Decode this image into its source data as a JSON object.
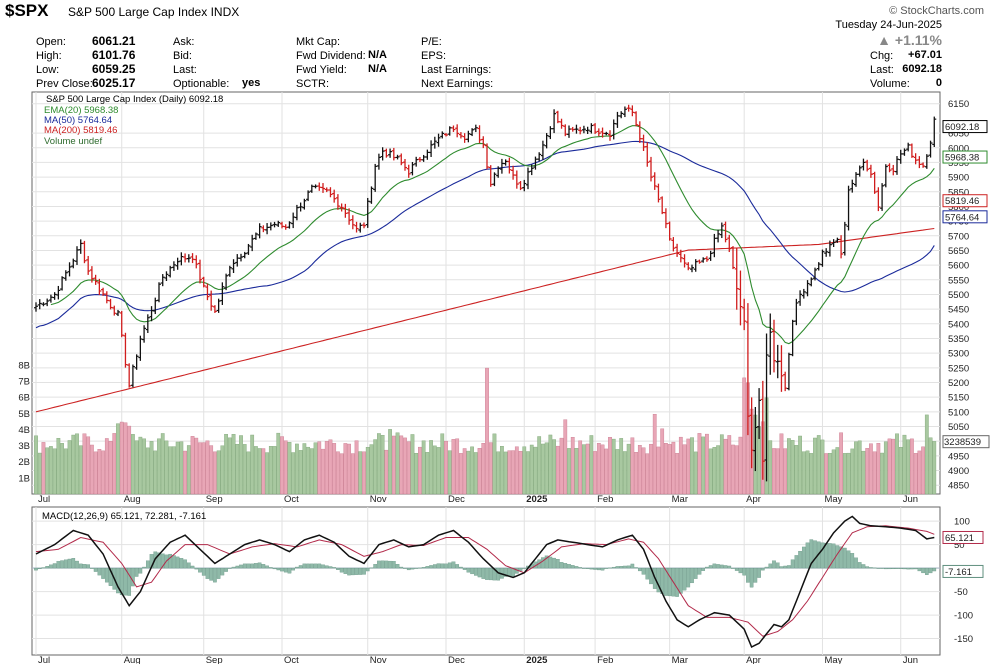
{
  "header": {
    "symbol": "$SPX",
    "name": "S&P 500 Large Cap Index",
    "exchange": "INDX",
    "brand": "© StockCharts.com",
    "date": "Tuesday  24-Jun-2025",
    "change_pct": "▲ +1.11%",
    "fields": {
      "open": {
        "label": "Open:",
        "value": "6061.21"
      },
      "high": {
        "label": "High:",
        "value": "6101.76"
      },
      "low": {
        "label": "Low:",
        "value": "6059.25"
      },
      "prev_close": {
        "label": "Prev Close:",
        "value": "6025.17"
      },
      "ask": {
        "label": "Ask:",
        "value": ""
      },
      "bid": {
        "label": "Bid:",
        "value": ""
      },
      "last": {
        "label": "Last:",
        "value": ""
      },
      "optionable": {
        "label": "Optionable:",
        "value": "yes"
      },
      "mkt_cap": {
        "label": "Mkt Cap:",
        "value": ""
      },
      "fwd_dividend": {
        "label": "Fwd Dividend:",
        "value": "N/A"
      },
      "fwd_yield": {
        "label": "Fwd Yield:",
        "value": "N/A"
      },
      "sctr": {
        "label": "SCTR:",
        "value": ""
      },
      "pe": {
        "label": "P/E:",
        "value": ""
      },
      "eps": {
        "label": "EPS:",
        "value": ""
      },
      "last_earnings": {
        "label": "Last Earnings:",
        "value": ""
      },
      "next_earnings": {
        "label": "Next Earnings:",
        "value": ""
      },
      "chg": {
        "label": "Chg:",
        "value": "+67.01"
      },
      "last_price": {
        "label": "Last:",
        "value": "6092.18"
      },
      "volume": {
        "label": "Volume:",
        "value": "0"
      }
    }
  },
  "chart_data": [
    {
      "type": "ohlc-bars",
      "title": "S&P 500 Large Cap Index (Daily) 6092.18",
      "legend": [
        {
          "name": "EMA(20) 5968.38",
          "color": "#2e8b2e"
        },
        {
          "name": "MA(50) 5764.64",
          "color": "#1a2a9a"
        },
        {
          "name": "MA(200) 5819.46",
          "color": "#cc2222"
        },
        {
          "name": "Volume undef",
          "color": "#4a8a4a"
        }
      ],
      "months": [
        "Jul",
        "Aug",
        "Sep",
        "Oct",
        "Nov",
        "Dec",
        "2025",
        "Feb",
        "Mar",
        "Apr",
        "May",
        "Jun"
      ],
      "month_idx": [
        0,
        23,
        45,
        66,
        89,
        110,
        131,
        150,
        170,
        190,
        211,
        232
      ],
      "price_ticks": [
        4850,
        4900,
        4950,
        5000,
        5050,
        5100,
        5150,
        5200,
        5250,
        5300,
        5350,
        5400,
        5450,
        5500,
        5550,
        5600,
        5650,
        5700,
        5750,
        5800,
        5850,
        5900,
        5950,
        6000,
        6050,
        6150
      ],
      "ylim": [
        4820,
        6190
      ],
      "volume_ticks": [
        "1B",
        "2B",
        "3B",
        "4B",
        "5B",
        "6B",
        "7B",
        "8B"
      ],
      "volume_max_label": "3238539",
      "last_labels": {
        "price": "6092.18",
        "ema20": "5968.38",
        "ma200": "5819.46",
        "ma50": "5764.64"
      },
      "anchors_close": [
        [
          0,
          5460
        ],
        [
          5,
          5500
        ],
        [
          10,
          5620
        ],
        [
          12,
          5670
        ],
        [
          14,
          5580
        ],
        [
          17,
          5520
        ],
        [
          19,
          5480
        ],
        [
          22,
          5430
        ],
        [
          25,
          5190
        ],
        [
          28,
          5350
        ],
        [
          31,
          5450
        ],
        [
          34,
          5560
        ],
        [
          38,
          5620
        ],
        [
          42,
          5630
        ],
        [
          45,
          5520
        ],
        [
          48,
          5440
        ],
        [
          52,
          5600
        ],
        [
          56,
          5650
        ],
        [
          60,
          5720
        ],
        [
          64,
          5740
        ],
        [
          67,
          5730
        ],
        [
          70,
          5790
        ],
        [
          74,
          5860
        ],
        [
          78,
          5850
        ],
        [
          82,
          5800
        ],
        [
          86,
          5720
        ],
        [
          88,
          5740
        ],
        [
          91,
          5940
        ],
        [
          93,
          5990
        ],
        [
          97,
          5960
        ],
        [
          100,
          5920
        ],
        [
          104,
          5980
        ],
        [
          108,
          6030
        ],
        [
          112,
          6070
        ],
        [
          115,
          6040
        ],
        [
          118,
          6060
        ],
        [
          120,
          6010
        ],
        [
          122,
          5880
        ],
        [
          124,
          5940
        ],
        [
          126,
          5960
        ],
        [
          128,
          5900
        ],
        [
          130,
          5870
        ],
        [
          131,
          5890
        ],
        [
          133,
          5940
        ],
        [
          136,
          6010
        ],
        [
          139,
          6110
        ],
        [
          142,
          6050
        ],
        [
          145,
          6060
        ],
        [
          148,
          6070
        ],
        [
          151,
          6060
        ],
        [
          154,
          6050
        ],
        [
          156,
          6110
        ],
        [
          158,
          6130
        ],
        [
          160,
          6120
        ],
        [
          162,
          6040
        ],
        [
          165,
          5900
        ],
        [
          168,
          5780
        ],
        [
          170,
          5680
        ],
        [
          172,
          5640
        ],
        [
          175,
          5580
        ],
        [
          177,
          5600
        ],
        [
          180,
          5620
        ],
        [
          182,
          5680
        ],
        [
          184,
          5730
        ],
        [
          186,
          5650
        ],
        [
          188,
          5520
        ],
        [
          190,
          5400
        ],
        [
          191,
          5080
        ],
        [
          192,
          4980
        ],
        [
          193,
          5050
        ],
        [
          194,
          5140
        ],
        [
          195,
          4920
        ],
        [
          196,
          5290
        ],
        [
          197,
          5380
        ],
        [
          198,
          5270
        ],
        [
          199,
          5280
        ],
        [
          201,
          5180
        ],
        [
          203,
          5420
        ],
        [
          205,
          5500
        ],
        [
          207,
          5540
        ],
        [
          209,
          5580
        ],
        [
          211,
          5640
        ],
        [
          213,
          5660
        ],
        [
          215,
          5690
        ],
        [
          216,
          5630
        ],
        [
          218,
          5860
        ],
        [
          220,
          5900
        ],
        [
          222,
          5960
        ],
        [
          224,
          5910
        ],
        [
          226,
          5800
        ],
        [
          228,
          5940
        ],
        [
          230,
          5930
        ],
        [
          232,
          5980
        ],
        [
          234,
          6000
        ],
        [
          236,
          5960
        ],
        [
          238,
          5940
        ],
        [
          240,
          6025
        ],
        [
          241,
          6092
        ]
      ],
      "macd": {
        "label": "MACD(12,26,9) 65.121, 72.281, -7.161",
        "macd_value": "65.121",
        "signal_value": "72.281",
        "hist_value": "-7.161",
        "ticks": [
          100,
          50,
          0,
          -50,
          -100,
          -150
        ],
        "ylim": [
          -185,
          130
        ],
        "macd_anchors": [
          [
            0,
            30
          ],
          [
            5,
            50
          ],
          [
            10,
            80
          ],
          [
            14,
            70
          ],
          [
            18,
            30
          ],
          [
            22,
            -40
          ],
          [
            25,
            -80
          ],
          [
            28,
            -50
          ],
          [
            32,
            20
          ],
          [
            36,
            55
          ],
          [
            40,
            70
          ],
          [
            44,
            40
          ],
          [
            48,
            10
          ],
          [
            52,
            30
          ],
          [
            56,
            50
          ],
          [
            60,
            60
          ],
          [
            64,
            50
          ],
          [
            68,
            35
          ],
          [
            72,
            60
          ],
          [
            76,
            70
          ],
          [
            80,
            55
          ],
          [
            84,
            25
          ],
          [
            88,
            10
          ],
          [
            92,
            50
          ],
          [
            96,
            60
          ],
          [
            100,
            45
          ],
          [
            104,
            50
          ],
          [
            108,
            70
          ],
          [
            112,
            80
          ],
          [
            116,
            55
          ],
          [
            120,
            20
          ],
          [
            124,
            -10
          ],
          [
            128,
            -20
          ],
          [
            131,
            -10
          ],
          [
            134,
            20
          ],
          [
            137,
            50
          ],
          [
            140,
            60
          ],
          [
            144,
            55
          ],
          [
            148,
            50
          ],
          [
            152,
            45
          ],
          [
            156,
            60
          ],
          [
            160,
            70
          ],
          [
            163,
            40
          ],
          [
            166,
            -20
          ],
          [
            169,
            -70
          ],
          [
            172,
            -110
          ],
          [
            175,
            -125
          ],
          [
            178,
            -110
          ],
          [
            182,
            -95
          ],
          [
            186,
            -100
          ],
          [
            190,
            -130
          ],
          [
            192,
            -168
          ],
          [
            194,
            -160
          ],
          [
            196,
            -140
          ],
          [
            198,
            -120
          ],
          [
            200,
            -125
          ],
          [
            202,
            -110
          ],
          [
            204,
            -70
          ],
          [
            206,
            -30
          ],
          [
            208,
            10
          ],
          [
            211,
            40
          ],
          [
            214,
            75
          ],
          [
            217,
            100
          ],
          [
            219,
            110
          ],
          [
            221,
            95
          ],
          [
            224,
            90
          ],
          [
            228,
            88
          ],
          [
            232,
            85
          ],
          [
            236,
            80
          ],
          [
            239,
            62
          ],
          [
            241,
            65
          ]
        ],
        "signal_anchors": [
          [
            0,
            35
          ],
          [
            6,
            40
          ],
          [
            12,
            65
          ],
          [
            18,
            55
          ],
          [
            23,
            10
          ],
          [
            27,
            -40
          ],
          [
            31,
            -30
          ],
          [
            35,
            15
          ],
          [
            40,
            50
          ],
          [
            46,
            50
          ],
          [
            52,
            30
          ],
          [
            58,
            45
          ],
          [
            64,
            52
          ],
          [
            70,
            45
          ],
          [
            76,
            60
          ],
          [
            82,
            50
          ],
          [
            88,
            25
          ],
          [
            93,
            35
          ],
          [
            98,
            50
          ],
          [
            104,
            48
          ],
          [
            110,
            65
          ],
          [
            116,
            65
          ],
          [
            121,
            40
          ],
          [
            126,
            5
          ],
          [
            131,
            -10
          ],
          [
            136,
            15
          ],
          [
            141,
            45
          ],
          [
            147,
            52
          ],
          [
            153,
            50
          ],
          [
            159,
            62
          ],
          [
            163,
            55
          ],
          [
            167,
            20
          ],
          [
            171,
            -30
          ],
          [
            175,
            -80
          ],
          [
            180,
            -105
          ],
          [
            186,
            -105
          ],
          [
            191,
            -115
          ],
          [
            195,
            -145
          ],
          [
            199,
            -135
          ],
          [
            203,
            -110
          ],
          [
            207,
            -70
          ],
          [
            211,
            -20
          ],
          [
            215,
            30
          ],
          [
            219,
            75
          ],
          [
            223,
            88
          ],
          [
            228,
            90
          ],
          [
            234,
            85
          ],
          [
            239,
            78
          ],
          [
            241,
            72
          ]
        ]
      }
    }
  ]
}
